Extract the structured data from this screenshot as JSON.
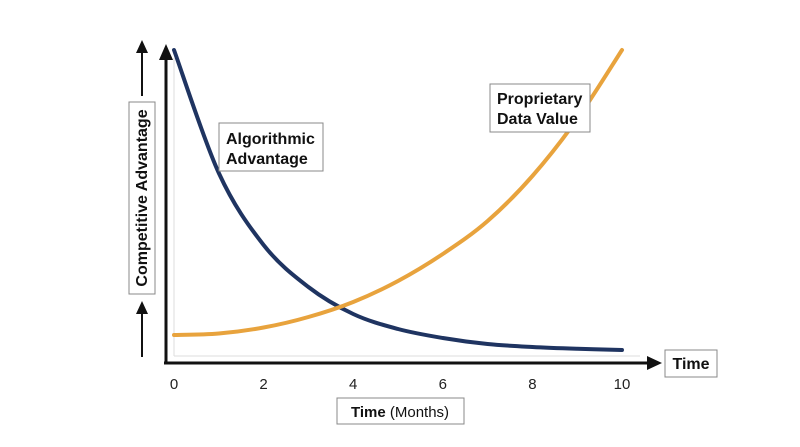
{
  "chart_data": {
    "type": "line",
    "xlabel": "Time",
    "xlabel_unit": "(Months)",
    "ylabel": "Competitive Advantage",
    "x_axis_arrow_label": "Time",
    "x_ticks": [
      0,
      2,
      4,
      6,
      8,
      10
    ],
    "xlim": [
      0,
      10
    ],
    "grid": false,
    "legend": "none",
    "series": [
      {
        "name": "Algorithmic Advantage",
        "name_lines": [
          "Algorithmic",
          "Advantage"
        ],
        "color": "#1f3461",
        "x": [
          0,
          1,
          2,
          3,
          4,
          5,
          6,
          7,
          8,
          9,
          10
        ],
        "y": [
          1.0,
          0.59,
          0.35,
          0.21,
          0.12,
          0.07,
          0.04,
          0.02,
          0.01,
          0.004,
          0.0
        ]
      },
      {
        "name": "Proprietary Data Value",
        "name_lines": [
          "Proprietary",
          "Data Value"
        ],
        "color": "#e8a33d",
        "x": [
          0,
          1,
          2,
          3,
          4,
          5,
          6,
          7,
          8,
          9,
          10
        ],
        "y": [
          0.05,
          0.055,
          0.075,
          0.11,
          0.16,
          0.23,
          0.32,
          0.43,
          0.58,
          0.77,
          1.0
        ]
      }
    ]
  }
}
